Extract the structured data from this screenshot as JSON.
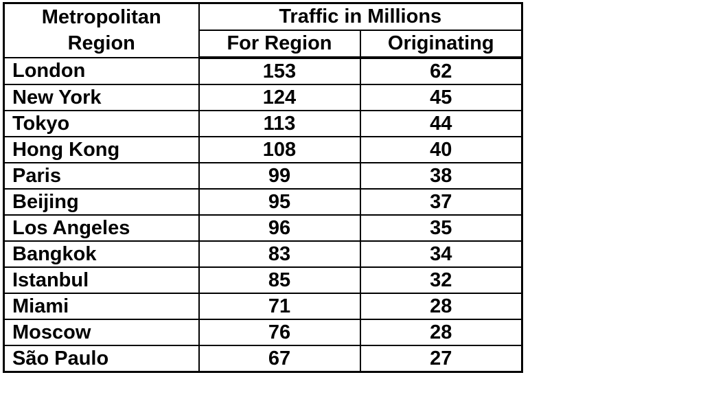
{
  "chart_data": {
    "type": "table",
    "columns": {
      "region": "Metropolitan Region",
      "group": "Traffic in Millions",
      "for_region": "For Region",
      "originating": "Originating"
    },
    "rows": [
      {
        "region": "London",
        "for_region": "153",
        "originating": "62"
      },
      {
        "region": "New York",
        "for_region": "124",
        "originating": "45"
      },
      {
        "region": "Tokyo",
        "for_region": "113",
        "originating": "44"
      },
      {
        "region": "Hong Kong",
        "for_region": "108",
        "originating": "40"
      },
      {
        "region": "Paris",
        "for_region": "99",
        "originating": "38"
      },
      {
        "region": "Beijing",
        "for_region": "95",
        "originating": "37"
      },
      {
        "region": "Los Angeles",
        "for_region": "96",
        "originating": "35"
      },
      {
        "region": "Bangkok",
        "for_region": "83",
        "originating": "34"
      },
      {
        "region": "Istanbul",
        "for_region": "85",
        "originating": "32"
      },
      {
        "region": "Miami",
        "for_region": "71",
        "originating": "28"
      },
      {
        "region": "Moscow",
        "for_region": "76",
        "originating": "28"
      },
      {
        "region": "São Paulo",
        "for_region": "67",
        "originating": "27"
      }
    ]
  }
}
